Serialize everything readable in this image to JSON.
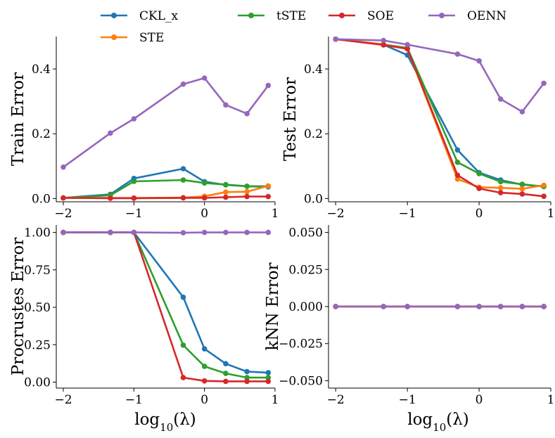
{
  "chart_data": {
    "type": "line",
    "x": [
      -2,
      -1.333,
      -1,
      -0.301,
      0,
      0.301,
      0.602,
      0.903
    ],
    "legend": [
      {
        "name": "CKL_x",
        "color": "#1f77b4"
      },
      {
        "name": "tSTE",
        "color": "#2ca02c"
      },
      {
        "name": "SOE",
        "color": "#d62728"
      },
      {
        "name": "OENN",
        "color": "#9467bd"
      },
      {
        "name": "STE",
        "color": "#ff7f0e"
      }
    ],
    "xlabel_base": "log",
    "xlabel_sub": "10",
    "xlabel_arg": "(λ)",
    "xticks": [
      -2,
      -1,
      0,
      1
    ],
    "xtick_labels": [
      "−2",
      "−1",
      "0",
      "1"
    ],
    "panels": [
      {
        "ylabel": "Train Error",
        "ylim": [
          -0.01,
          0.5
        ],
        "yticks": [
          0.0,
          0.2,
          0.4
        ],
        "ytick_labels": [
          "0.0",
          "0.2",
          "0.4"
        ],
        "series": [
          {
            "name": "CKL_x",
            "values": [
              0.002,
              0.013,
              0.062,
              0.092,
              0.052,
              0.042,
              0.038,
              0.036
            ]
          },
          {
            "name": "tSTE",
            "values": [
              0.002,
              0.01,
              0.053,
              0.057,
              0.048,
              0.043,
              0.038,
              0.038
            ]
          },
          {
            "name": "STE",
            "values": [
              0.002,
              0.002,
              0.002,
              0.003,
              0.007,
              0.02,
              0.021,
              0.039
            ]
          },
          {
            "name": "SOE",
            "values": [
              0.002,
              0.001,
              0.001,
              0.002,
              0.002,
              0.004,
              0.006,
              0.006
            ]
          },
          {
            "name": "OENN",
            "values": [
              0.097,
              0.202,
              0.246,
              0.353,
              0.372,
              0.289,
              0.262,
              0.349
            ]
          }
        ]
      },
      {
        "ylabel": "Test Error",
        "ylim": [
          -0.01,
          0.5
        ],
        "yticks": [
          0.0,
          0.2,
          0.4
        ],
        "ytick_labels": [
          "0.0",
          "0.2",
          "0.4"
        ],
        "series": [
          {
            "name": "CKL_x",
            "values": [
              0.492,
              0.475,
              0.443,
              0.15,
              0.08,
              0.057,
              0.043,
              0.037
            ]
          },
          {
            "name": "tSTE",
            "values": [
              0.492,
              0.476,
              0.465,
              0.112,
              0.077,
              0.052,
              0.044,
              0.037
            ]
          },
          {
            "name": "STE",
            "values": [
              0.492,
              0.476,
              0.462,
              0.06,
              0.035,
              0.033,
              0.03,
              0.041
            ]
          },
          {
            "name": "SOE",
            "values": [
              0.492,
              0.474,
              0.462,
              0.072,
              0.031,
              0.018,
              0.014,
              0.007
            ]
          },
          {
            "name": "OENN",
            "values": [
              0.492,
              0.488,
              0.475,
              0.446,
              0.425,
              0.307,
              0.268,
              0.356
            ]
          }
        ]
      },
      {
        "ylabel": "Procrustes Error",
        "ylim": [
          -0.04,
          1.05
        ],
        "yticks": [
          0.0,
          0.25,
          0.5,
          0.75,
          1.0
        ],
        "ytick_labels": [
          "0.00",
          "0.25",
          "0.50",
          "0.75",
          "1.00"
        ],
        "series": [
          {
            "name": "CKL_x",
            "values": [
              1.0,
              1.0,
              1.0,
              0.567,
              0.222,
              0.123,
              0.07,
              0.063
            ]
          },
          {
            "name": "tSTE",
            "values": [
              1.0,
              1.0,
              1.0,
              0.247,
              0.105,
              0.058,
              0.03,
              0.03
            ]
          },
          {
            "name": "SOE",
            "values": [
              1.0,
              1.0,
              1.0,
              0.03,
              0.008,
              0.005,
              0.005,
              0.005
            ]
          },
          {
            "name": "OENN",
            "values": [
              1.0,
              1.0,
              1.0,
              0.998,
              1.0,
              1.0,
              1.0,
              1.0
            ]
          }
        ]
      },
      {
        "ylabel": "kNN Error",
        "ylim": [
          -0.055,
          0.055
        ],
        "yticks": [
          -0.05,
          -0.025,
          0.0,
          0.025,
          0.05
        ],
        "ytick_labels": [
          "−0.050",
          "−0.025",
          "0.000",
          "0.025",
          "0.050"
        ],
        "series": [
          {
            "name": "CKL_x",
            "values": [
              0,
              0,
              0,
              0,
              0,
              0,
              0,
              0
            ]
          },
          {
            "name": "tSTE",
            "values": [
              0,
              0,
              0,
              0,
              0,
              0,
              0,
              0
            ]
          },
          {
            "name": "STE",
            "values": [
              0,
              0,
              0,
              0,
              0,
              0,
              0,
              0
            ]
          },
          {
            "name": "SOE",
            "values": [
              0,
              0,
              0,
              0,
              0,
              0,
              0,
              0
            ]
          },
          {
            "name": "OENN",
            "values": [
              0,
              0,
              0,
              0,
              0,
              0,
              0,
              0
            ]
          }
        ]
      }
    ]
  }
}
